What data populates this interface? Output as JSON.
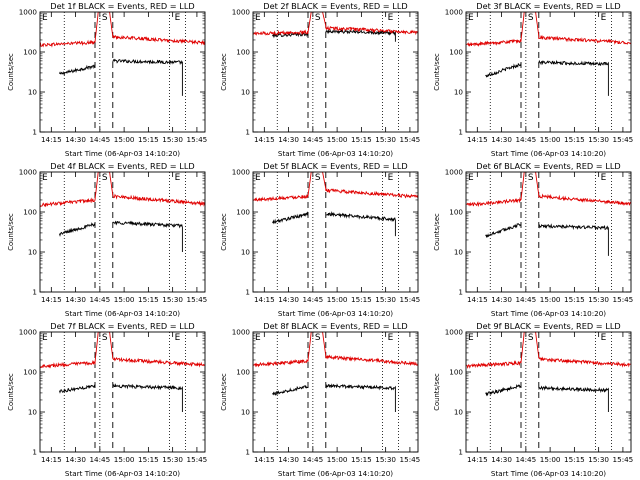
{
  "colors": {
    "events": "#000000",
    "lld": "#e00000",
    "axes": "#000000",
    "background": "#ffffff"
  },
  "chart_data": [
    {
      "type": "line",
      "detector": "1f",
      "title": "Det 1f BLACK = Events, RED = LLD",
      "xlabel": "Start Time (06-Apr-03 14:10:20)",
      "ylabel": "Counts/sec",
      "x_ticks": [
        "14:15",
        "14:30",
        "14:45",
        "15:00",
        "15:15",
        "15:30",
        "15:45"
      ],
      "y_ticks": [
        "1",
        "10",
        "100",
        "1000"
      ],
      "yscale": "log",
      "ylim": [
        1,
        1000
      ],
      "markers": [
        {
          "label": "E",
          "time": "14:11"
        },
        {
          "label": "S",
          "time": "14:48"
        },
        {
          "label": "E",
          "time": "15:33"
        }
      ],
      "dotted_times": [
        "14:23",
        "14:45",
        "15:28",
        "15:38"
      ],
      "dashed_times": [
        "14:42",
        "14:53"
      ],
      "series": [
        {
          "name": "Events",
          "color": "#000000",
          "segments": [
            {
              "start": "14:20",
              "end": "14:42",
              "v0": 28,
              "v1": 45
            },
            {
              "start": "14:53",
              "end": "15:36",
              "v0": 60,
              "v1": 55,
              "drop_to": 8
            }
          ]
        },
        {
          "name": "LLD",
          "color": "#e00000",
          "segments": [
            {
              "start": "14:08",
              "end": "14:42",
              "v0": 150,
              "v1": 175
            },
            {
              "start": "14:42",
              "end": "14:44",
              "v0": 175,
              "v1": 1000
            },
            {
              "start": "14:51",
              "end": "14:53",
              "v0": 1000,
              "v1": 240
            },
            {
              "start": "14:53",
              "end": "15:50",
              "v0": 240,
              "v1": 170
            }
          ]
        }
      ]
    },
    {
      "type": "line",
      "detector": "2f",
      "title": "Det 2f BLACK = Events, RED = LLD",
      "xlabel": "Start Time (06-Apr-03 14:10:20)",
      "ylabel": "Counts/sec",
      "x_ticks": [
        "14:15",
        "14:30",
        "14:45",
        "15:00",
        "15:15",
        "15:30",
        "15:45"
      ],
      "y_ticks": [
        "1",
        "10",
        "100",
        "1000"
      ],
      "yscale": "log",
      "ylim": [
        1,
        1000
      ],
      "markers": [
        {
          "label": "E",
          "time": "14:11"
        },
        {
          "label": "S",
          "time": "14:48"
        },
        {
          "label": "E",
          "time": "15:33"
        }
      ],
      "dotted_times": [
        "14:23",
        "14:45",
        "15:28",
        "15:38"
      ],
      "dashed_times": [
        "14:42",
        "14:53"
      ],
      "series": [
        {
          "name": "Events",
          "color": "#000000",
          "segments": [
            {
              "start": "14:20",
              "end": "14:42",
              "v0": 260,
              "v1": 280
            },
            {
              "start": "14:53",
              "end": "15:36",
              "v0": 330,
              "v1": 300,
              "drop_to": 180
            }
          ]
        },
        {
          "name": "LLD",
          "color": "#e00000",
          "segments": [
            {
              "start": "14:08",
              "end": "14:42",
              "v0": 290,
              "v1": 310
            },
            {
              "start": "14:42",
              "end": "14:44",
              "v0": 310,
              "v1": 1000
            },
            {
              "start": "14:51",
              "end": "14:53",
              "v0": 1000,
              "v1": 450
            },
            {
              "start": "14:53",
              "end": "15:50",
              "v0": 400,
              "v1": 310
            }
          ]
        }
      ]
    },
    {
      "type": "line",
      "detector": "3f",
      "title": "Det 3f BLACK = Events, RED = LLD",
      "xlabel": "Start Time (06-Apr-03 14:10:20)",
      "ylabel": "Counts/sec",
      "x_ticks": [
        "14:15",
        "14:30",
        "14:45",
        "15:00",
        "15:15",
        "15:30",
        "15:45"
      ],
      "y_ticks": [
        "1",
        "10",
        "100",
        "1000"
      ],
      "yscale": "log",
      "ylim": [
        1,
        1000
      ],
      "markers": [
        {
          "label": "E",
          "time": "14:11"
        },
        {
          "label": "S",
          "time": "14:48"
        },
        {
          "label": "E",
          "time": "15:33"
        }
      ],
      "dotted_times": [
        "14:23",
        "14:45",
        "15:28",
        "15:38"
      ],
      "dashed_times": [
        "14:42",
        "14:53"
      ],
      "series": [
        {
          "name": "Events",
          "color": "#000000",
          "segments": [
            {
              "start": "14:20",
              "end": "14:42",
              "v0": 25,
              "v1": 50
            },
            {
              "start": "14:53",
              "end": "15:36",
              "v0": 55,
              "v1": 50,
              "drop_to": 8
            }
          ]
        },
        {
          "name": "LLD",
          "color": "#e00000",
          "segments": [
            {
              "start": "14:08",
              "end": "14:42",
              "v0": 150,
              "v1": 190
            },
            {
              "start": "14:42",
              "end": "14:44",
              "v0": 190,
              "v1": 1000
            },
            {
              "start": "14:51",
              "end": "14:53",
              "v0": 1000,
              "v1": 250
            },
            {
              "start": "14:53",
              "end": "15:50",
              "v0": 230,
              "v1": 170
            }
          ]
        }
      ]
    },
    {
      "type": "line",
      "detector": "4f",
      "title": "Det 4f BLACK = Events, RED = LLD",
      "xlabel": "Start Time (06-Apr-03 14:10:20)",
      "ylabel": "Counts/sec",
      "x_ticks": [
        "14:15",
        "14:30",
        "14:45",
        "15:00",
        "15:15",
        "15:30",
        "15:45"
      ],
      "y_ticks": [
        "1",
        "10",
        "100",
        "1000"
      ],
      "yscale": "log",
      "ylim": [
        1,
        1000
      ],
      "markers": [
        {
          "label": "E",
          "time": "14:11"
        },
        {
          "label": "S",
          "time": "14:48"
        },
        {
          "label": "E",
          "time": "15:33"
        }
      ],
      "dotted_times": [
        "14:23",
        "14:45",
        "15:28",
        "15:38"
      ],
      "dashed_times": [
        "14:42",
        "14:53"
      ],
      "series": [
        {
          "name": "Events",
          "color": "#000000",
          "segments": [
            {
              "start": "14:20",
              "end": "14:42",
              "v0": 28,
              "v1": 50
            },
            {
              "start": "14:53",
              "end": "15:36",
              "v0": 55,
              "v1": 45,
              "drop_to": 10
            }
          ]
        },
        {
          "name": "LLD",
          "color": "#e00000",
          "segments": [
            {
              "start": "14:08",
              "end": "14:42",
              "v0": 150,
              "v1": 200
            },
            {
              "start": "14:42",
              "end": "14:44",
              "v0": 200,
              "v1": 1000
            },
            {
              "start": "14:51",
              "end": "14:53",
              "v0": 1000,
              "v1": 260
            },
            {
              "start": "14:53",
              "end": "15:50",
              "v0": 250,
              "v1": 160
            }
          ]
        }
      ]
    },
    {
      "type": "line",
      "detector": "5f",
      "title": "Det 5f BLACK = Events, RED = LLD",
      "xlabel": "Start Time (06-Apr-03 14:10:20)",
      "ylabel": "Counts/sec",
      "x_ticks": [
        "14:15",
        "14:30",
        "14:45",
        "15:00",
        "15:15",
        "15:30",
        "15:45"
      ],
      "y_ticks": [
        "1",
        "10",
        "100",
        "1000"
      ],
      "yscale": "log",
      "ylim": [
        1,
        1000
      ],
      "markers": [
        {
          "label": "E",
          "time": "14:11"
        },
        {
          "label": "S",
          "time": "14:48"
        },
        {
          "label": "E",
          "time": "15:33"
        }
      ],
      "dotted_times": [
        "14:23",
        "14:45",
        "15:28",
        "15:38"
      ],
      "dashed_times": [
        "14:42",
        "14:53"
      ],
      "series": [
        {
          "name": "Events",
          "color": "#000000",
          "segments": [
            {
              "start": "14:20",
              "end": "14:42",
              "v0": 55,
              "v1": 90
            },
            {
              "start": "14:53",
              "end": "15:36",
              "v0": 90,
              "v1": 65,
              "drop_to": 25
            }
          ]
        },
        {
          "name": "LLD",
          "color": "#e00000",
          "segments": [
            {
              "start": "14:08",
              "end": "14:42",
              "v0": 200,
              "v1": 250
            },
            {
              "start": "14:42",
              "end": "14:44",
              "v0": 250,
              "v1": 1000
            },
            {
              "start": "14:51",
              "end": "14:53",
              "v0": 1000,
              "v1": 380
            },
            {
              "start": "14:53",
              "end": "15:50",
              "v0": 350,
              "v1": 240
            }
          ]
        }
      ]
    },
    {
      "type": "line",
      "detector": "6f",
      "title": "Det 6f BLACK = Events, RED = LLD",
      "xlabel": "Start Time (06-Apr-03 14:10:20)",
      "ylabel": "Counts/sec",
      "x_ticks": [
        "14:15",
        "14:30",
        "14:45",
        "15:00",
        "15:15",
        "15:30",
        "15:45"
      ],
      "y_ticks": [
        "1",
        "10",
        "100",
        "1000"
      ],
      "yscale": "log",
      "ylim": [
        1,
        1000
      ],
      "markers": [
        {
          "label": "E",
          "time": "14:11"
        },
        {
          "label": "S",
          "time": "14:48"
        },
        {
          "label": "E",
          "time": "15:33"
        }
      ],
      "dotted_times": [
        "14:23",
        "14:45",
        "15:28",
        "15:38"
      ],
      "dashed_times": [
        "14:42",
        "14:53"
      ],
      "series": [
        {
          "name": "Events",
          "color": "#000000",
          "segments": [
            {
              "start": "14:20",
              "end": "14:42",
              "v0": 25,
              "v1": 50
            },
            {
              "start": "14:53",
              "end": "15:36",
              "v0": 45,
              "v1": 40,
              "drop_to": 8
            }
          ]
        },
        {
          "name": "LLD",
          "color": "#e00000",
          "segments": [
            {
              "start": "14:08",
              "end": "14:42",
              "v0": 150,
              "v1": 200
            },
            {
              "start": "14:42",
              "end": "14:44",
              "v0": 200,
              "v1": 1000
            },
            {
              "start": "14:51",
              "end": "14:53",
              "v0": 1000,
              "v1": 260
            },
            {
              "start": "14:53",
              "end": "15:50",
              "v0": 250,
              "v1": 160
            }
          ]
        }
      ]
    },
    {
      "type": "line",
      "detector": "7f",
      "title": "Det 7f BLACK = Events, RED = LLD",
      "xlabel": "Start Time (06-Apr-03 14:10:20)",
      "ylabel": "Counts/sec",
      "x_ticks": [
        "14:15",
        "14:30",
        "14:45",
        "15:00",
        "15:15",
        "15:30",
        "15:45"
      ],
      "y_ticks": [
        "1",
        "10",
        "100",
        "1000"
      ],
      "yscale": "log",
      "ylim": [
        1,
        1000
      ],
      "markers": [
        {
          "label": "E",
          "time": "14:11"
        },
        {
          "label": "S",
          "time": "14:48"
        },
        {
          "label": "E",
          "time": "15:33"
        }
      ],
      "dotted_times": [
        "14:23",
        "14:45",
        "15:28",
        "15:38"
      ],
      "dashed_times": [
        "14:42",
        "14:53"
      ],
      "series": [
        {
          "name": "Events",
          "color": "#000000",
          "segments": [
            {
              "start": "14:20",
              "end": "14:42",
              "v0": 33,
              "v1": 45
            },
            {
              "start": "14:53",
              "end": "15:36",
              "v0": 45,
              "v1": 40,
              "drop_to": 10
            }
          ]
        },
        {
          "name": "LLD",
          "color": "#e00000",
          "segments": [
            {
              "start": "14:08",
              "end": "14:42",
              "v0": 140,
              "v1": 170
            },
            {
              "start": "14:42",
              "end": "14:44",
              "v0": 170,
              "v1": 1000
            },
            {
              "start": "14:51",
              "end": "14:53",
              "v0": 1000,
              "v1": 220
            },
            {
              "start": "14:53",
              "end": "15:50",
              "v0": 210,
              "v1": 150
            }
          ]
        }
      ]
    },
    {
      "type": "line",
      "detector": "8f",
      "title": "Det 8f BLACK = Events, RED = LLD",
      "xlabel": "Start Time (06-Apr-03 14:10:20)",
      "ylabel": "Counts/sec",
      "x_ticks": [
        "14:15",
        "14:30",
        "14:45",
        "15:00",
        "15:15",
        "15:30",
        "15:45"
      ],
      "y_ticks": [
        "1",
        "10",
        "100",
        "1000"
      ],
      "yscale": "log",
      "ylim": [
        1,
        1000
      ],
      "markers": [
        {
          "label": "E",
          "time": "14:11"
        },
        {
          "label": "S",
          "time": "14:48"
        },
        {
          "label": "E",
          "time": "15:33"
        }
      ],
      "dotted_times": [
        "14:23",
        "14:45",
        "15:28",
        "15:38"
      ],
      "dashed_times": [
        "14:42",
        "14:53"
      ],
      "series": [
        {
          "name": "Events",
          "color": "#000000",
          "segments": [
            {
              "start": "14:20",
              "end": "14:42",
              "v0": 28,
              "v1": 45
            },
            {
              "start": "14:53",
              "end": "15:36",
              "v0": 45,
              "v1": 40,
              "drop_to": 10
            }
          ]
        },
        {
          "name": "LLD",
          "color": "#e00000",
          "segments": [
            {
              "start": "14:08",
              "end": "14:42",
              "v0": 150,
              "v1": 190
            },
            {
              "start": "14:42",
              "end": "14:44",
              "v0": 190,
              "v1": 1000
            },
            {
              "start": "14:51",
              "end": "14:53",
              "v0": 1000,
              "v1": 250
            },
            {
              "start": "14:53",
              "end": "15:50",
              "v0": 240,
              "v1": 160
            }
          ]
        }
      ]
    },
    {
      "type": "line",
      "detector": "9f",
      "title": "Det 9f BLACK = Events, RED = LLD",
      "xlabel": "Start Time (06-Apr-03 14:10:20)",
      "ylabel": "Counts/sec",
      "x_ticks": [
        "14:15",
        "14:30",
        "14:45",
        "15:00",
        "15:15",
        "15:30",
        "15:45"
      ],
      "y_ticks": [
        "1",
        "10",
        "100",
        "1000"
      ],
      "yscale": "log",
      "ylim": [
        1,
        1000
      ],
      "markers": [
        {
          "label": "E",
          "time": "14:11"
        },
        {
          "label": "S",
          "time": "14:48"
        },
        {
          "label": "E",
          "time": "15:33"
        }
      ],
      "dotted_times": [
        "14:23",
        "14:45",
        "15:28",
        "15:38"
      ],
      "dashed_times": [
        "14:42",
        "14:53"
      ],
      "series": [
        {
          "name": "Events",
          "color": "#000000",
          "segments": [
            {
              "start": "14:20",
              "end": "14:42",
              "v0": 28,
              "v1": 45
            },
            {
              "start": "14:53",
              "end": "15:36",
              "v0": 40,
              "v1": 35,
              "drop_to": 10
            }
          ]
        },
        {
          "name": "LLD",
          "color": "#e00000",
          "segments": [
            {
              "start": "14:08",
              "end": "14:42",
              "v0": 140,
              "v1": 170
            },
            {
              "start": "14:42",
              "end": "14:44",
              "v0": 170,
              "v1": 1000
            },
            {
              "start": "14:51",
              "end": "14:53",
              "v0": 1000,
              "v1": 230
            },
            {
              "start": "14:53",
              "end": "15:50",
              "v0": 210,
              "v1": 150
            }
          ]
        }
      ]
    }
  ]
}
